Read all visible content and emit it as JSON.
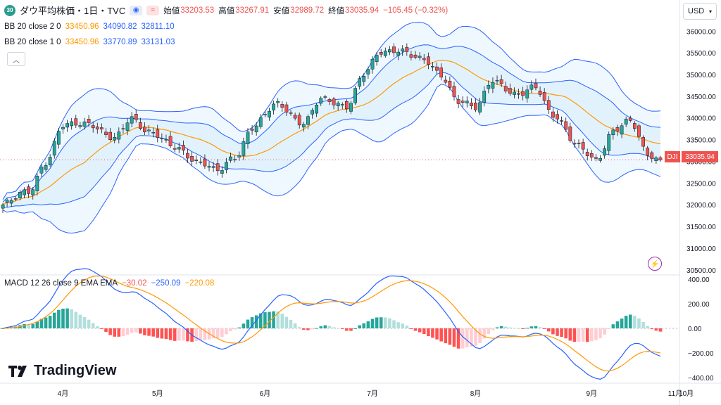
{
  "header": {
    "badge": "30",
    "symbol": "ダウ平均株価・1日・TVC",
    "open_label": "始値",
    "open": "33203.53",
    "high_label": "高値",
    "high": "33267.91",
    "low_label": "安値",
    "low": "32989.72",
    "close_label": "終値",
    "close": "33035.94",
    "change": "−105.45 (−0.32%)"
  },
  "bb2": {
    "label": "BB 20 close 2 0",
    "basis": "33450.96",
    "upper": "34090.82",
    "lower": "32811.10"
  },
  "bb1": {
    "label": "BB 20 close 1 0",
    "basis": "33450.96",
    "upper": "33770.89",
    "lower": "33131.03"
  },
  "macd_legend": {
    "label": "MACD 12 26 close 9 EMA EMA",
    "hist": "−30.02",
    "macd": "−250.09",
    "signal": "−220.08"
  },
  "currency": "USD",
  "brand": "TradingView",
  "last_price": {
    "symbol": "DJI",
    "value": "33035.94"
  },
  "colors": {
    "up": "#26a69a",
    "down": "#ef5350",
    "basis": "#ff9800",
    "band": "#2962ff",
    "macd": "#2962ff",
    "signal": "#ff9800"
  },
  "chart_data": [
    {
      "type": "candlestick",
      "title": "ダウ平均株価・1日・TVC",
      "y_ticks": [
        "36000.00",
        "35500.00",
        "35000.00",
        "34500.00",
        "34000.00",
        "33500.00",
        "33000.00",
        "32500.00",
        "32000.00",
        "31500.00",
        "31000.00",
        "30500.00"
      ],
      "ylim": [
        30400,
        36150
      ],
      "x_ticks": [
        "4月",
        "5月",
        "6月",
        "7月",
        "8月",
        "9月",
        "10月",
        "11月"
      ],
      "anchors": [
        {
          "x": 0,
          "y": 32000
        },
        {
          "x": 6,
          "y": 32300
        },
        {
          "x": 10,
          "y": 33000
        },
        {
          "x": 14,
          "y": 33800
        },
        {
          "x": 20,
          "y": 33900
        },
        {
          "x": 26,
          "y": 33500
        },
        {
          "x": 30,
          "y": 34000
        },
        {
          "x": 34,
          "y": 33700
        },
        {
          "x": 40,
          "y": 33300
        },
        {
          "x": 46,
          "y": 33000
        },
        {
          "x": 50,
          "y": 32750
        },
        {
          "x": 54,
          "y": 33100
        },
        {
          "x": 58,
          "y": 33800
        },
        {
          "x": 64,
          "y": 34300
        },
        {
          "x": 70,
          "y": 33900
        },
        {
          "x": 74,
          "y": 34400
        },
        {
          "x": 80,
          "y": 34300
        },
        {
          "x": 84,
          "y": 35000
        },
        {
          "x": 88,
          "y": 35500
        },
        {
          "x": 92,
          "y": 35600
        },
        {
          "x": 98,
          "y": 35300
        },
        {
          "x": 102,
          "y": 35000
        },
        {
          "x": 106,
          "y": 34400
        },
        {
          "x": 110,
          "y": 34200
        },
        {
          "x": 114,
          "y": 34900
        },
        {
          "x": 120,
          "y": 34500
        },
        {
          "x": 124,
          "y": 34700
        },
        {
          "x": 128,
          "y": 34100
        },
        {
          "x": 134,
          "y": 33300
        },
        {
          "x": 138,
          "y": 33050
        },
        {
          "x": 142,
          "y": 33700
        },
        {
          "x": 146,
          "y": 33900
        },
        {
          "x": 150,
          "y": 33200
        },
        {
          "x": 153,
          "y": 33036
        }
      ],
      "n_bars": 154,
      "bb_period": 20,
      "bb_multipliers": [
        1,
        2
      ],
      "last_close": 33035.94
    },
    {
      "type": "macd",
      "title": "MACD 12 26 close 9 EMA EMA",
      "y_ticks": [
        "400.00",
        "200.00",
        "0.00",
        "−200.00",
        "−400.00"
      ],
      "ylim": [
        -430,
        430
      ],
      "fast": 12,
      "slow": 26,
      "signal": 9,
      "last": {
        "hist": -30.02,
        "macd": -250.09,
        "signal": -220.08
      }
    }
  ]
}
